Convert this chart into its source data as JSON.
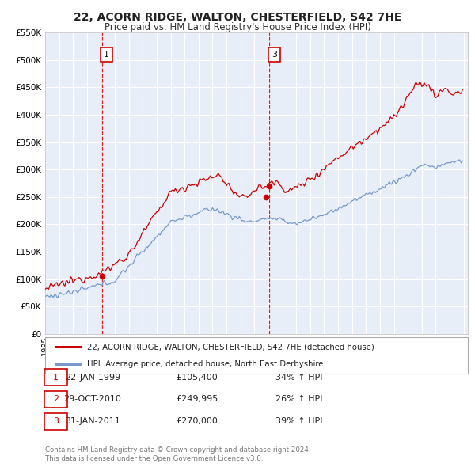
{
  "title": "22, ACORN RIDGE, WALTON, CHESTERFIELD, S42 7HE",
  "subtitle": "Price paid vs. HM Land Registry's House Price Index (HPI)",
  "title_fontsize": 10,
  "subtitle_fontsize": 8.5,
  "background_color": "#ffffff",
  "plot_bg_color": "#e8eef8",
  "grid_color": "#ffffff",
  "red_line_color": "#cc0000",
  "blue_line_color": "#7799cc",
  "ylim": [
    0,
    550000
  ],
  "yticks": [
    0,
    50000,
    100000,
    150000,
    200000,
    250000,
    300000,
    350000,
    400000,
    450000,
    500000,
    550000
  ],
  "ytick_labels": [
    "£0",
    "£50K",
    "£100K",
    "£150K",
    "£200K",
    "£250K",
    "£300K",
    "£350K",
    "£400K",
    "£450K",
    "£500K",
    "£550K"
  ],
  "xlim_start": 1995.3,
  "xlim_end": 2025.3,
  "transactions": [
    {
      "label": "1",
      "date_x": 1999.06,
      "price": 105400,
      "vline_x": 1999.06
    },
    {
      "label": "2",
      "date_x": 2010.83,
      "price": 249995,
      "vline_x": null
    },
    {
      "label": "3",
      "date_x": 2011.08,
      "price": 270000,
      "vline_x": 2011.08
    }
  ],
  "legend_line1": "22, ACORN RIDGE, WALTON, CHESTERFIELD, S42 7HE (detached house)",
  "legend_line2": "HPI: Average price, detached house, North East Derbyshire",
  "table_rows": [
    {
      "num": "1",
      "date": "22-JAN-1999",
      "price": "£105,400",
      "hpi": "34% ↑ HPI"
    },
    {
      "num": "2",
      "date": "29-OCT-2010",
      "price": "£249,995",
      "hpi": "26% ↑ HPI"
    },
    {
      "num": "3",
      "date": "31-JAN-2011",
      "price": "£270,000",
      "hpi": "39% ↑ HPI"
    }
  ],
  "footer1": "Contains HM Land Registry data © Crown copyright and database right 2024.",
  "footer2": "This data is licensed under the Open Government Licence v3.0."
}
